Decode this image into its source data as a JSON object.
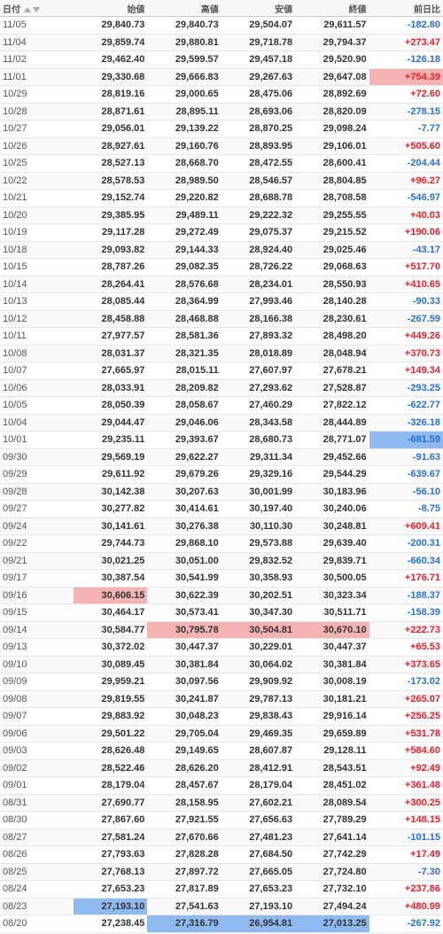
{
  "table": {
    "header": [
      "日付",
      "始値",
      "高値",
      "安値",
      "終値",
      "前日比"
    ],
    "rows": [
      [
        "11/05",
        "29,840.73",
        "29,840.73",
        "29,504.07",
        "29,611.57",
        "-182.80"
      ],
      [
        "11/04",
        "29,859.74",
        "29,880.81",
        "29,718.78",
        "29,794.37",
        "+273.47"
      ],
      [
        "11/02",
        "29,462.40",
        "29,599.57",
        "29,457.18",
        "29,520.90",
        "-126.18"
      ],
      [
        "11/01",
        "29,330.68",
        "29,666.83",
        "29,267.63",
        "29,647.08",
        "+754.39"
      ],
      [
        "10/29",
        "28,819.16",
        "29,000.65",
        "28,475.06",
        "28,892.69",
        "+72.60"
      ],
      [
        "10/28",
        "28,871.61",
        "28,895.11",
        "28,693.06",
        "28,820.09",
        "-278.15"
      ],
      [
        "10/27",
        "29,056.01",
        "29,139.22",
        "28,870.25",
        "29,098.24",
        "-7.77"
      ],
      [
        "10/26",
        "28,927.61",
        "29,160.76",
        "28,893.95",
        "29,106.01",
        "+505.60"
      ],
      [
        "10/25",
        "28,527.13",
        "28,668.70",
        "28,472.55",
        "28,600.41",
        "-204.44"
      ],
      [
        "10/22",
        "28,578.53",
        "28,989.50",
        "28,546.57",
        "28,804.85",
        "+96.27"
      ],
      [
        "10/21",
        "29,152.74",
        "29,220.82",
        "28,688.78",
        "28,708.58",
        "-546.97"
      ],
      [
        "10/20",
        "29,385.95",
        "29,489.11",
        "29,222.32",
        "29,255.55",
        "+40.03"
      ],
      [
        "10/19",
        "29,117.28",
        "29,272.49",
        "29,075.37",
        "29,215.52",
        "+190.06"
      ],
      [
        "10/18",
        "29,093.82",
        "29,144.33",
        "28,924.40",
        "29,025.46",
        "-43.17"
      ],
      [
        "10/15",
        "28,787.26",
        "29,082.35",
        "28,726.22",
        "29,068.63",
        "+517.70"
      ],
      [
        "10/14",
        "28,264.41",
        "28,576.68",
        "28,234.01",
        "28,550.93",
        "+410.65"
      ],
      [
        "10/13",
        "28,085.44",
        "28,364.99",
        "27,993.46",
        "28,140.28",
        "-90.33"
      ],
      [
        "10/12",
        "28,458.88",
        "28,468.88",
        "28,166.38",
        "28,230.61",
        "-267.59"
      ],
      [
        "10/11",
        "27,977.57",
        "28,581.36",
        "27,893.32",
        "28,498.20",
        "+449.26"
      ],
      [
        "10/08",
        "28,031.37",
        "28,321.35",
        "28,018.89",
        "28,048.94",
        "+370.73"
      ],
      [
        "10/07",
        "27,665.97",
        "28,015.11",
        "27,607.97",
        "27,678.21",
        "+149.34"
      ],
      [
        "10/06",
        "28,033.91",
        "28,209.82",
        "27,293.62",
        "27,528.87",
        "-293.25"
      ],
      [
        "10/05",
        "28,050.39",
        "28,058.67",
        "27,460.29",
        "27,822.12",
        "-622.77"
      ],
      [
        "10/04",
        "29,044.47",
        "29,046.06",
        "28,343.58",
        "28,444.89",
        "-326.18"
      ],
      [
        "10/01",
        "29,235.11",
        "29,393.67",
        "28,680.73",
        "28,771.07",
        "-681.59"
      ],
      [
        "09/30",
        "29,569.19",
        "29,622.27",
        "29,311.34",
        "29,452.66",
        "-91.63"
      ],
      [
        "09/29",
        "29,611.92",
        "29,679.26",
        "29,329.16",
        "29,544.29",
        "-639.67"
      ],
      [
        "09/28",
        "30,142.38",
        "30,207.63",
        "30,001.99",
        "30,183.96",
        "-56.10"
      ],
      [
        "09/27",
        "30,277.82",
        "30,414.61",
        "30,197.40",
        "30,240.06",
        "-8.75"
      ],
      [
        "09/24",
        "30,141.61",
        "30,276.38",
        "30,110.30",
        "30,248.81",
        "+609.41"
      ],
      [
        "09/22",
        "29,744.73",
        "29,868.10",
        "29,573.88",
        "29,639.40",
        "-200.31"
      ],
      [
        "09/21",
        "30,021.25",
        "30,051.00",
        "29,832.52",
        "29,839.71",
        "-660.34"
      ],
      [
        "09/17",
        "30,387.54",
        "30,541.99",
        "30,358.93",
        "30,500.05",
        "+176.71"
      ],
      [
        "09/16",
        "30,606.15",
        "30,622.39",
        "30,202.51",
        "30,323.34",
        "-188.37"
      ],
      [
        "09/15",
        "30,464.17",
        "30,573.41",
        "30,347.30",
        "30,511.71",
        "-158.39"
      ],
      [
        "09/14",
        "30,584.77",
        "30,795.78",
        "30,504.81",
        "30,670.10",
        "+222.73"
      ],
      [
        "09/13",
        "30,372.02",
        "30,447.37",
        "30,229.01",
        "30,447.37",
        "+65.53"
      ],
      [
        "09/10",
        "30,089.45",
        "30,381.84",
        "30,064.02",
        "30,381.84",
        "+373.65"
      ],
      [
        "09/09",
        "29,959.21",
        "30,097.56",
        "29,909.92",
        "30,008.19",
        "-173.02"
      ],
      [
        "09/08",
        "29,819.55",
        "30,241.87",
        "29,787.13",
        "30,181.21",
        "+265.07"
      ],
      [
        "09/07",
        "29,883.92",
        "30,048.23",
        "29,838.43",
        "29,916.14",
        "+256.25"
      ],
      [
        "09/06",
        "29,501.22",
        "29,705.04",
        "29,469.35",
        "29,659.89",
        "+531.78"
      ],
      [
        "09/03",
        "28,626.48",
        "29,149.65",
        "28,607.87",
        "29,128.11",
        "+584.60"
      ],
      [
        "09/02",
        "28,522.46",
        "28,626.20",
        "28,412.91",
        "28,543.51",
        "+92.49"
      ],
      [
        "09/01",
        "28,179.04",
        "28,457.67",
        "28,179.04",
        "28,451.02",
        "+361.48"
      ],
      [
        "08/31",
        "27,690.77",
        "28,158.95",
        "27,602.21",
        "28,089.54",
        "+300.25"
      ],
      [
        "08/30",
        "27,867.60",
        "27,921.55",
        "27,656.63",
        "27,789.29",
        "+148.15"
      ],
      [
        "08/27",
        "27,581.24",
        "27,670.66",
        "27,481.23",
        "27,641.14",
        "-101.15"
      ],
      [
        "08/26",
        "27,793.63",
        "27,828.28",
        "27,684.50",
        "27,742.29",
        "+17.49"
      ],
      [
        "08/25",
        "27,768.13",
        "27,897.72",
        "27,665.05",
        "27,724.80",
        "-7.30"
      ],
      [
        "08/24",
        "27,653.23",
        "27,817.89",
        "27,653.23",
        "27,732.10",
        "+237.86"
      ],
      [
        "08/23",
        "27,193.10",
        "27,541.63",
        "27,193.10",
        "27,494.24",
        "+480.99"
      ],
      [
        "08/20",
        "27,238.45",
        "27,316.79",
        "26,954.81",
        "27,013.25",
        "-267.92"
      ]
    ]
  }
}
